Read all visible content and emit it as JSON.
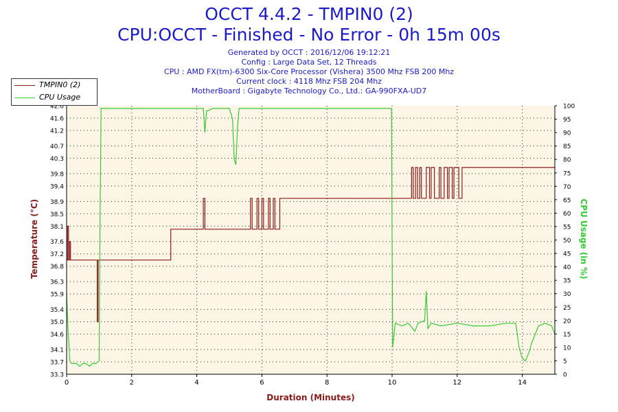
{
  "header": {
    "title": "OCCT 4.4.2 - TMPIN0 (2)",
    "subtitle": "CPU:OCCT - Finished - No Error - 0h 15m 00s",
    "info_lines": [
      "Generated by OCCT : 2016/12/06 19:12:21",
      "Config : Large Data Set, 12 Threads",
      "CPU : AMD FX(tm)-6300 Six-Core Processor (Vishera) 3500 Mhz FSB 200 Mhz",
      "Current clock : 4118 Mhz FSB 204 Mhz",
      "MotherBoard : Gigabyte Technology Co., Ltd.: GA-990FXA-UD7"
    ]
  },
  "legend": {
    "placement": "top-left",
    "items": [
      {
        "label": "TMPIN0 (2)",
        "color": "#8b1a1a"
      },
      {
        "label": "CPU Usage",
        "color": "#33cc33"
      }
    ]
  },
  "chart_data": {
    "type": "line",
    "title": "OCCT 4.4.2 - TMPIN0 (2)",
    "xlabel": "Duration (Minutes)",
    "ylabel": "Temperature (°C)",
    "y2label": "CPU Usage (in %)",
    "xlim": [
      0,
      15
    ],
    "ylim": [
      33.3,
      42.0
    ],
    "y2lim": [
      0,
      100
    ],
    "grid": true,
    "x_ticks": [
      "0",
      "2",
      "4",
      "6",
      "8",
      "10",
      "12",
      "14"
    ],
    "y_ticks": [
      "33.3",
      "33.7",
      "34.1",
      "34.6",
      "35.0",
      "35.4",
      "35.9",
      "36.3",
      "36.8",
      "37.2",
      "37.6",
      "38.1",
      "38.5",
      "38.9",
      "39.4",
      "39.8",
      "40.3",
      "40.7",
      "41.2",
      "41.6",
      "42.0"
    ],
    "y2_ticks": [
      "0",
      "5",
      "10",
      "15",
      "20",
      "25",
      "30",
      "35",
      "40",
      "45",
      "50",
      "55",
      "60",
      "65",
      "70",
      "75",
      "80",
      "85",
      "90",
      "95",
      "100"
    ],
    "colors": {
      "temp": "#8b1a1a",
      "cpu": "#33cc33",
      "plot_bg": "#fdf5e6",
      "axis_text": "#8b1a1a",
      "y2_text": "#33cc33"
    },
    "series": [
      {
        "name": "TMPIN0 (2)",
        "axis": "left",
        "x": [
          0,
          0.03,
          0.03,
          0.06,
          0.06,
          0.09,
          0.09,
          0.12,
          0.12,
          0.94,
          0.94,
          0.97,
          0.97,
          1.0,
          1.0,
          3.2,
          3.2,
          4.2,
          4.2,
          4.25,
          4.25,
          4.3,
          4.3,
          5.65,
          5.65,
          5.7,
          5.7,
          5.85,
          5.85,
          5.9,
          5.9,
          6.0,
          6.0,
          6.05,
          6.05,
          6.2,
          6.2,
          6.25,
          6.25,
          6.35,
          6.35,
          6.4,
          6.4,
          6.55,
          6.55,
          6.65,
          6.65,
          10.0,
          10.0,
          10.6,
          10.6,
          10.65,
          10.65,
          10.72,
          10.72,
          10.78,
          10.78,
          10.85,
          10.85,
          10.9,
          10.9,
          11.05,
          11.05,
          11.15,
          11.15,
          11.2,
          11.2,
          11.3,
          11.3,
          11.45,
          11.45,
          11.5,
          11.5,
          11.6,
          11.6,
          11.7,
          11.7,
          11.75,
          11.75,
          11.85,
          11.85,
          11.9,
          11.9,
          12.05,
          12.05,
          12.15,
          12.15,
          12.25,
          12.25,
          15.0
        ],
        "values": [
          37.0,
          37.0,
          38.1,
          38.1,
          37.0,
          37.0,
          37.6,
          37.6,
          37.0,
          37.0,
          35.0,
          35.0,
          37.0,
          37.0,
          37.0,
          37.0,
          38.0,
          38.0,
          39.0,
          39.0,
          38.0,
          38.0,
          38.0,
          38.0,
          39.0,
          39.0,
          38.0,
          38.0,
          39.0,
          39.0,
          38.0,
          38.0,
          39.0,
          39.0,
          38.0,
          38.0,
          39.0,
          39.0,
          38.0,
          38.0,
          39.0,
          39.0,
          38.0,
          38.0,
          39.0,
          39.0,
          39.0,
          39.0,
          39.0,
          39.0,
          40.0,
          40.0,
          39.0,
          39.0,
          40.0,
          40.0,
          39.0,
          39.0,
          40.0,
          40.0,
          39.0,
          39.0,
          40.0,
          40.0,
          39.0,
          39.0,
          40.0,
          40.0,
          39.0,
          39.0,
          40.0,
          40.0,
          39.0,
          39.0,
          40.0,
          40.0,
          39.0,
          39.0,
          40.0,
          40.0,
          39.0,
          39.0,
          40.0,
          40.0,
          39.0,
          39.0,
          40.0,
          40.0,
          40.0,
          40.0
        ]
      },
      {
        "name": "CPU Usage",
        "axis": "right",
        "x": [
          0,
          0.05,
          0.1,
          0.15,
          0.2,
          0.3,
          0.4,
          0.5,
          0.6,
          0.7,
          0.8,
          0.9,
          1.0,
          1.03,
          1.06,
          1.1,
          1.5,
          2.0,
          2.5,
          3.0,
          3.5,
          4.0,
          4.2,
          4.25,
          4.3,
          4.5,
          5.0,
          5.1,
          5.15,
          5.2,
          5.25,
          5.3,
          5.5,
          6.0,
          7.0,
          8.0,
          9.0,
          9.5,
          9.98,
          10.0,
          10.02,
          10.1,
          10.3,
          10.5,
          10.7,
          10.8,
          11.0,
          11.05,
          11.1,
          11.2,
          11.5,
          12.0,
          12.5,
          13.0,
          13.5,
          13.8,
          13.9,
          14.0,
          14.1,
          14.2,
          14.3,
          14.5,
          14.7,
          14.9,
          15.0
        ],
        "values": [
          30,
          15,
          5,
          4,
          4,
          4,
          3,
          4,
          4,
          3,
          4,
          4,
          5,
          60,
          99,
          99,
          99,
          99,
          99,
          99,
          99,
          99,
          99,
          90,
          98,
          99,
          99,
          95,
          80,
          78,
          92,
          99,
          99,
          99,
          99,
          99,
          99,
          99,
          99,
          50,
          10,
          19,
          18,
          19,
          16,
          19,
          20,
          31,
          17,
          19,
          18,
          19,
          18,
          18,
          19,
          19,
          10,
          6,
          5,
          8,
          12,
          18,
          19,
          18,
          15
        ]
      }
    ]
  }
}
